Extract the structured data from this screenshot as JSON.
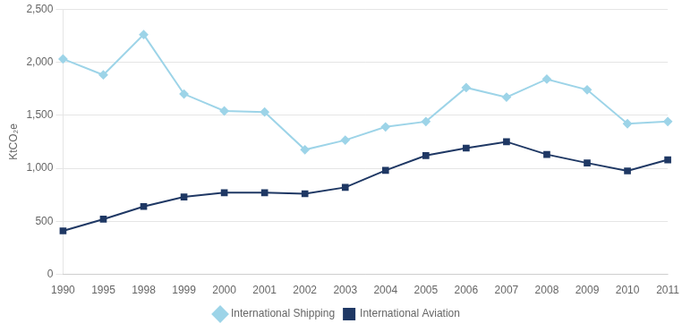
{
  "chart_data": {
    "type": "line",
    "categories": [
      "1990",
      "1995",
      "1998",
      "1999",
      "2000",
      "2001",
      "2002",
      "2003",
      "2004",
      "2005",
      "2006",
      "2007",
      "2008",
      "2009",
      "2010",
      "2011"
    ],
    "series": [
      {
        "name": "International Shipping",
        "color": "#9dd4e8",
        "marker": "diamond",
        "values": [
          2030,
          1880,
          2260,
          1700,
          1540,
          1530,
          1175,
          1265,
          1390,
          1440,
          1760,
          1670,
          1840,
          1740,
          1420,
          1440
        ]
      },
      {
        "name": "International Aviation",
        "color": "#1f3864",
        "marker": "square",
        "values": [
          410,
          520,
          640,
          730,
          770,
          770,
          760,
          820,
          980,
          1120,
          1190,
          1250,
          1130,
          1050,
          975,
          1080
        ]
      }
    ],
    "ylabel": "KtCO₂e",
    "ylim": [
      0,
      2500
    ],
    "yticks": [
      0,
      500,
      {
        "value": 1000,
        "label": "1,000"
      },
      {
        "value": 1500,
        "label": "1,500"
      },
      {
        "value": 2000,
        "label": "2,000"
      },
      {
        "value": 2500,
        "label": "2,500"
      }
    ],
    "grid": true,
    "legend": "bottom"
  }
}
